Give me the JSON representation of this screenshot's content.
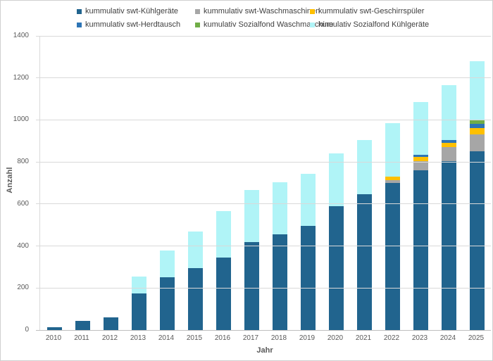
{
  "chart_data": {
    "type": "bar",
    "stacked": true,
    "title": "",
    "xlabel": "Jahr",
    "ylabel": "Anzahl",
    "ylim": [
      0,
      1400
    ],
    "yticks": [
      0,
      200,
      400,
      600,
      800,
      1000,
      1200,
      1400
    ],
    "grid": true,
    "legend_position": "top",
    "categories": [
      "2010",
      "2011",
      "2012",
      "2013",
      "2014",
      "2015",
      "2016",
      "2017",
      "2018",
      "2019",
      "2020",
      "2021",
      "2022",
      "2023",
      "2024",
      "2025"
    ],
    "series": [
      {
        "name": "kummulativ swt-Kühlgeräte",
        "color": "#21648E",
        "values": [
          15,
          45,
          60,
          175,
          250,
          295,
          345,
          420,
          455,
          495,
          590,
          645,
          700,
          760,
          805,
          850
        ]
      },
      {
        "name": "kummulativ swt-Waschmaschinen",
        "color": "#A6A6A6",
        "values": [
          0,
          0,
          0,
          0,
          0,
          0,
          0,
          0,
          0,
          0,
          0,
          0,
          15,
          45,
          65,
          80
        ]
      },
      {
        "name": "kummulativ swt-Geschirrspüler",
        "color": "#FFC000",
        "values": [
          0,
          0,
          0,
          0,
          0,
          0,
          0,
          0,
          0,
          0,
          0,
          0,
          15,
          20,
          20,
          30
        ]
      },
      {
        "name": "kummulativ swt-Herdtausch",
        "color": "#2E75B6",
        "values": [
          0,
          0,
          0,
          0,
          0,
          0,
          0,
          0,
          0,
          0,
          0,
          0,
          0,
          10,
          15,
          20
        ]
      },
      {
        "name": "kumulativ Sozialfond Waschmaschine",
        "color": "#70AD47",
        "values": [
          0,
          0,
          0,
          0,
          0,
          0,
          0,
          0,
          0,
          0,
          0,
          0,
          0,
          0,
          0,
          20
        ]
      },
      {
        "name": "kumulativ Sozialfond Kühlgeräte",
        "color": "#B0F4F7",
        "values": [
          0,
          0,
          0,
          80,
          130,
          175,
          220,
          245,
          250,
          250,
          250,
          260,
          255,
          250,
          260,
          280
        ]
      }
    ],
    "totals": [
      15,
      45,
      60,
      255,
      380,
      470,
      565,
      665,
      705,
      745,
      840,
      905,
      985,
      1085,
      1165,
      1280
    ]
  }
}
